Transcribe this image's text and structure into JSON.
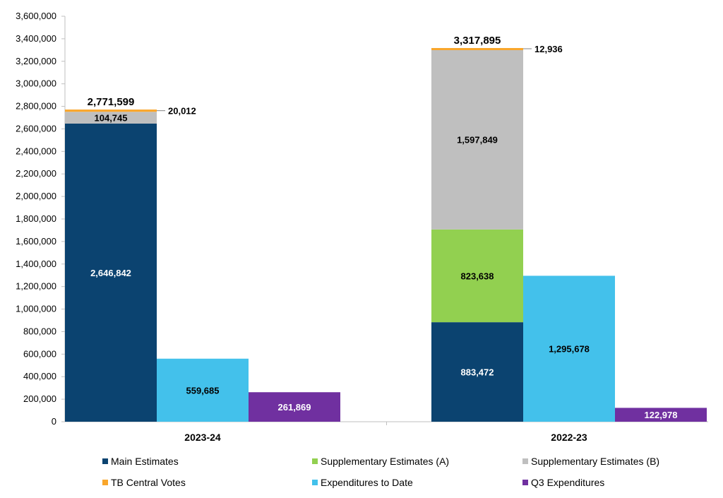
{
  "chart_data": {
    "type": "bar",
    "stacked_groups": true,
    "title": "",
    "xlabel": "",
    "ylabel": "",
    "ylim": [
      0,
      3600000
    ],
    "ytick_step": 200000,
    "grid": false,
    "legend_position": "bottom",
    "categories": [
      "2023-24",
      "2022-23"
    ],
    "series": [
      {
        "name": "Main Estimates",
        "color": "#0B4370",
        "bar": "stack",
        "values": [
          2646842,
          883472
        ],
        "labels": [
          "2,646,842",
          "883,472"
        ],
        "label_color": "#ffffff"
      },
      {
        "name": "Supplementary Estimates (A)",
        "color": "#92D050",
        "bar": "stack",
        "values": [
          0,
          823638
        ],
        "labels": [
          "",
          "823,638"
        ],
        "label_color": "#000000"
      },
      {
        "name": "Supplementary Estimates (B)",
        "color": "#BFBFBF",
        "bar": "stack",
        "values": [
          104745,
          1597849
        ],
        "labels": [
          "104,745",
          "1,597,849"
        ],
        "label_color": "#000000"
      },
      {
        "name": "TB Central Votes",
        "color": "#F9A62B",
        "bar": "stack",
        "values": [
          20012,
          12936
        ],
        "labels": [
          "20,012",
          "12,936"
        ],
        "label_color": "#000000"
      },
      {
        "name": "Expenditures to Date",
        "color": "#43C1EB",
        "bar": "expenditures",
        "values": [
          559685,
          1295678
        ],
        "labels": [
          "559,685",
          "1,295,678"
        ],
        "label_color": "#000000"
      },
      {
        "name": "Q3 Expenditures",
        "color": "#7030A0",
        "bar": "q3",
        "values": [
          261869,
          122978
        ],
        "labels": [
          "261,869",
          "122,978"
        ],
        "label_color": "#ffffff"
      }
    ],
    "stack_totals": [
      "2,771,599",
      "3,317,895"
    ],
    "ytick_labels": [
      "0",
      "200,000",
      "400,000",
      "600,000",
      "800,000",
      "1,000,000",
      "1,200,000",
      "1,400,000",
      "1,600,000",
      "1,800,000",
      "2,000,000",
      "2,200,000",
      "2,400,000",
      "2,600,000",
      "2,800,000",
      "3,000,000",
      "3,200,000",
      "3,400,000",
      "3,600,000"
    ]
  }
}
